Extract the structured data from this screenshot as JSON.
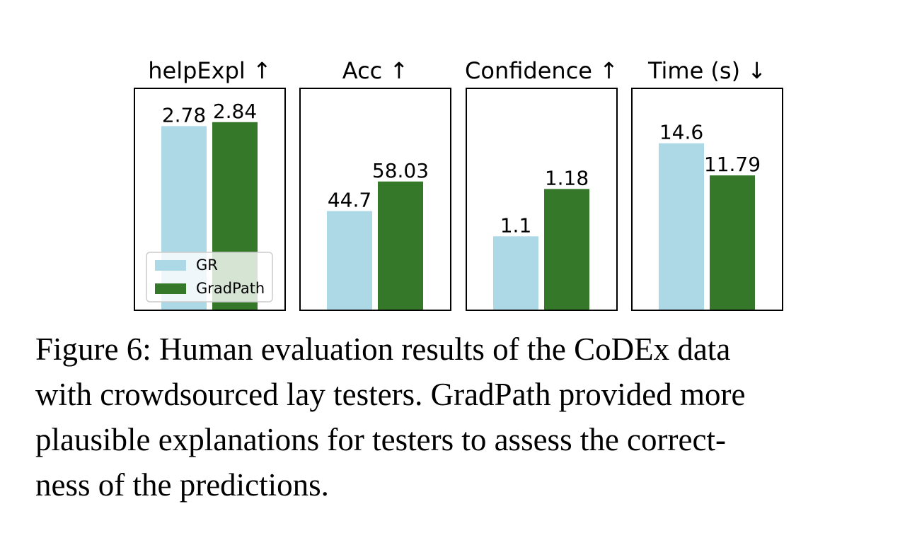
{
  "chart_data": {
    "type": "bar",
    "legend": {
      "placement": "lower-left of first panel",
      "entries": [
        "GR",
        "GradPath"
      ]
    },
    "series_colors": {
      "GR": "#add8e6",
      "GradPath": "#35782a"
    },
    "panels": [
      {
        "title": "helpExpl ↑",
        "series": [
          {
            "name": "GR",
            "value": 2.78,
            "label": "2.78"
          },
          {
            "name": "GradPath",
            "value": 2.84,
            "label": "2.84"
          }
        ],
        "ylim": [
          0,
          3.35
        ]
      },
      {
        "title": "Acc ↑",
        "series": [
          {
            "name": "GR",
            "value": 44.7,
            "label": "44.7"
          },
          {
            "name": "GradPath",
            "value": 58.03,
            "label": "58.03"
          }
        ],
        "ylim": [
          0,
          100
        ]
      },
      {
        "title": "Confidence ↑",
        "series": [
          {
            "name": "GR",
            "value": 1.1,
            "label": "1.1"
          },
          {
            "name": "GradPath",
            "value": 1.18,
            "label": "1.18"
          }
        ],
        "ylim": [
          0.975,
          1.35
        ]
      },
      {
        "title": "Time (s) ↓",
        "series": [
          {
            "name": "GR",
            "value": 14.6,
            "label": "14.6"
          },
          {
            "name": "GradPath",
            "value": 11.79,
            "label": "11.79"
          }
        ],
        "ylim": [
          0,
          19.4
        ]
      }
    ]
  },
  "caption": "Figure 6: Human evaluation results of the CoDEx data\nwith crowdsourced lay testers. GradPath provided more\nplausible explanations for testers to assess the correct-\nness of the predictions."
}
